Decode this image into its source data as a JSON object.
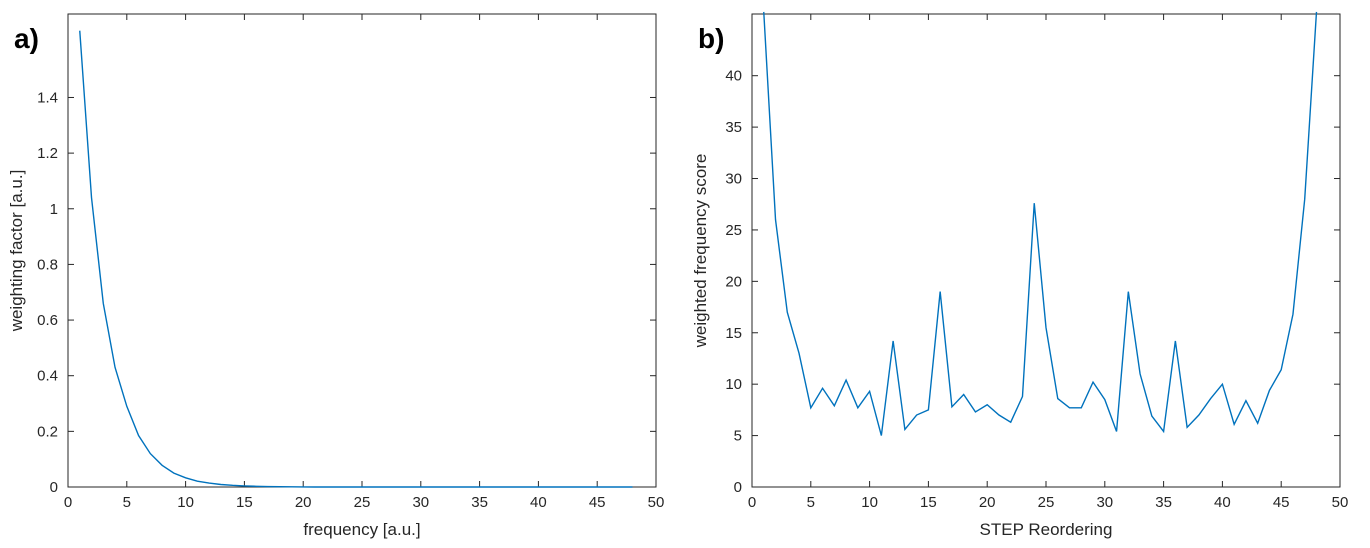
{
  "chart_data": [
    {
      "panel_label": "a)",
      "type": "line",
      "xlabel": "frequency [a.u.]",
      "ylabel": "weighting factor [a.u.]",
      "xlim": [
        0,
        50
      ],
      "ylim": [
        0,
        1.7
      ],
      "xticks": [
        0,
        5,
        10,
        15,
        20,
        25,
        30,
        35,
        40,
        45,
        50
      ],
      "yticks": [
        0,
        0.2,
        0.4,
        0.6,
        0.8,
        1,
        1.2,
        1.4
      ],
      "grid": false,
      "line_color": "#0072BD",
      "series": [
        {
          "x": [
            1,
            2,
            3,
            4,
            5,
            6,
            7,
            8,
            9,
            10,
            11,
            12,
            13,
            14,
            15,
            16,
            17,
            18,
            19,
            20,
            21,
            22,
            23,
            24,
            25,
            26,
            27,
            28,
            29,
            30,
            31,
            32,
            33,
            34,
            35,
            36,
            37,
            38,
            39,
            40,
            41,
            42,
            43,
            44,
            45,
            46,
            47,
            48
          ],
          "values": [
            1.64,
            1.04,
            0.66,
            0.43,
            0.29,
            0.185,
            0.12,
            0.078,
            0.05,
            0.033,
            0.021,
            0.014,
            0.009,
            0.006,
            0.004,
            0.0025,
            0.0016,
            0.001,
            0.0007,
            0.0004,
            0,
            0,
            0,
            0,
            0,
            0,
            0,
            0,
            0,
            0,
            0,
            0,
            0,
            0,
            0,
            0,
            0,
            0,
            0,
            0,
            0,
            0,
            0,
            0,
            0,
            0,
            0,
            0
          ]
        }
      ]
    },
    {
      "panel_label": "b)",
      "type": "line",
      "xlabel": "STEP Reordering",
      "ylabel": "weighted frequency score",
      "xlim": [
        0,
        50
      ],
      "ylim": [
        0,
        46
      ],
      "xticks": [
        0,
        5,
        10,
        15,
        20,
        25,
        30,
        35,
        40,
        45,
        50
      ],
      "yticks": [
        0,
        5,
        10,
        15,
        20,
        25,
        30,
        35,
        40
      ],
      "grid": false,
      "line_color": "#0072BD",
      "series": [
        {
          "x": [
            1,
            2,
            3,
            4,
            5,
            6,
            7,
            8,
            9,
            10,
            11,
            12,
            13,
            14,
            15,
            16,
            17,
            18,
            19,
            20,
            21,
            22,
            23,
            24,
            25,
            26,
            27,
            28,
            29,
            30,
            31,
            32,
            33,
            34,
            35,
            36,
            37,
            38,
            39,
            40,
            41,
            42,
            43,
            44,
            45,
            46,
            47,
            48
          ],
          "values": [
            46.2,
            26,
            17,
            13,
            7.7,
            9.6,
            7.9,
            10.4,
            7.7,
            9.3,
            5,
            14.2,
            5.6,
            7,
            7.5,
            19,
            7.8,
            9,
            7.3,
            8,
            7,
            6.3,
            8.8,
            27.6,
            15.5,
            8.6,
            7.7,
            7.7,
            10.2,
            8.5,
            5.4,
            19,
            11,
            6.9,
            5.4,
            14.2,
            5.8,
            7,
            8.6,
            10,
            6.1,
            8.4,
            6.2,
            9.4,
            11.4,
            16.8,
            28,
            46.2
          ]
        }
      ]
    }
  ]
}
